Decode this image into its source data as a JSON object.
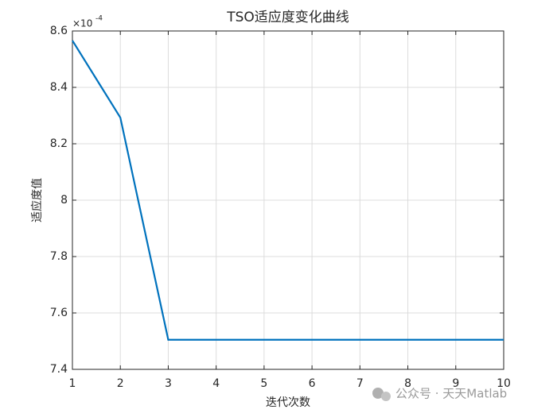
{
  "chart_data": {
    "type": "line",
    "title": "TSO适应度变化曲线",
    "x_label": "迭代次数",
    "y_label": "适应度值",
    "y_multiplier": "×10",
    "y_multiplier_exponent": "-4",
    "watermark": "公众号 · 天天Matlab",
    "x": [
      1,
      2,
      3,
      4,
      5,
      6,
      7,
      8,
      9,
      10
    ],
    "series": [
      {
        "color": "#0072bd",
        "values": [
          8.566,
          8.293,
          7.505,
          7.505,
          7.505,
          7.505,
          7.505,
          7.505,
          7.505,
          7.505
        ]
      }
    ],
    "xlim": [
      1,
      10
    ],
    "xticks": [
      1,
      2,
      3,
      4,
      5,
      6,
      7,
      8,
      9,
      10
    ],
    "ylim": [
      7.4,
      8.6
    ],
    "yticks": [
      7.4,
      7.6,
      7.8,
      8,
      8.2,
      8.4,
      8.6
    ],
    "grid": true
  }
}
